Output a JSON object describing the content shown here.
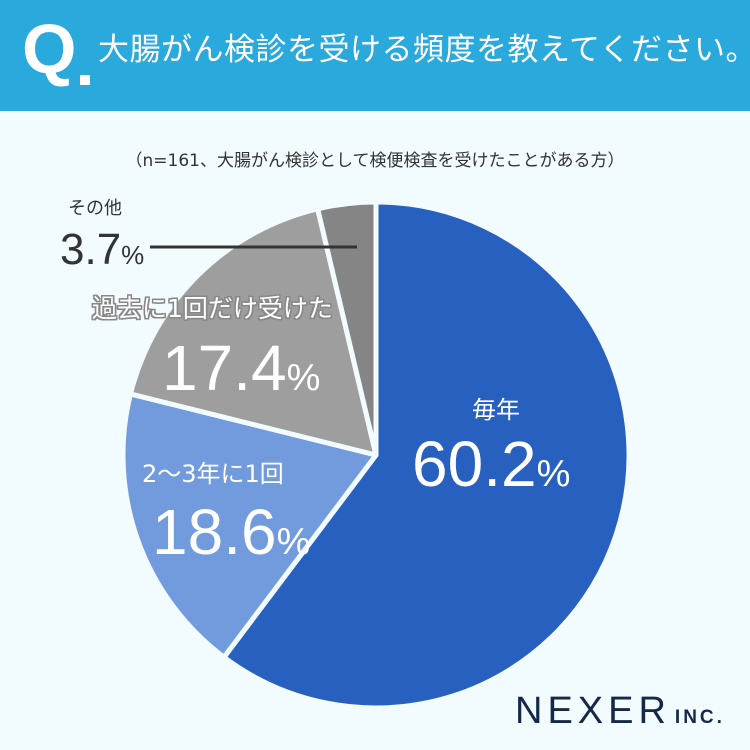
{
  "header": {
    "q_mark": "Q",
    "title": "大腸がん検診を受ける頻度を教えてください。"
  },
  "subtitle": "（n=161、大腸がん検診として検便検査を受けたことがある方）",
  "colors": {
    "header_bg": "#29a9dc",
    "background": "#f2fbfe",
    "every_year": "#2860c0",
    "two_three_years": "#729bde",
    "once_past": "#9e9e9e",
    "other": "#858585"
  },
  "labels": {
    "every_year": {
      "name": "毎年",
      "value": "60.2",
      "unit": "%"
    },
    "two_three_years": {
      "name": "2〜3年に1回",
      "value": "18.6",
      "unit": "%"
    },
    "once_past": {
      "name": "過去に1回だけ受けた",
      "value": "17.4",
      "unit": "%"
    },
    "other": {
      "name": "その他",
      "value": "3.7",
      "unit": "%"
    }
  },
  "logo": {
    "main": "NEXER",
    "suffix": "INC."
  },
  "chart_data": {
    "type": "pie",
    "title": "大腸がん検診を受ける頻度を教えてください。",
    "subtitle": "（n=161、大腸がん検診として検便検査を受けたことがある方）",
    "categories": [
      "毎年",
      "2〜3年に1回",
      "過去に1回だけ受けた",
      "その他"
    ],
    "values": [
      60.2,
      18.6,
      17.4,
      3.7
    ],
    "unit": "%",
    "start_angle": "12 o'clock",
    "direction": "clockwise",
    "legend": "none (direct labels)",
    "n": 161
  }
}
